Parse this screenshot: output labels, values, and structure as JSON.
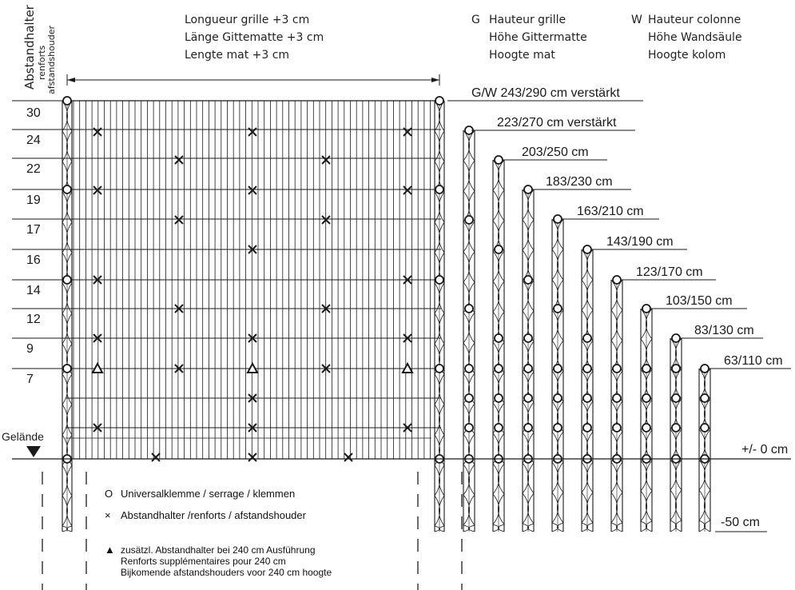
{
  "header": {
    "length_lines": [
      "Longueur grille +3 cm",
      "Länge Gittematte +3 cm",
      "Lengte mat +3 cm"
    ],
    "grid_height": {
      "key": "G",
      "lines": [
        "Hauteur grille",
        "Höhe Gittermatte",
        "Hoogte mat"
      ]
    },
    "column_height": {
      "key": "W",
      "lines": [
        "Hauteur colonne",
        "Höhe Wandsäule",
        "Hoogte kolom"
      ]
    }
  },
  "side_labels": {
    "abstandhalter": "Abstandhalter",
    "renforts": "renforts",
    "afstandshouder": "afstandshouder"
  },
  "spacings": [
    "30",
    "24",
    "22",
    "19",
    "17",
    "16",
    "14",
    "12",
    "9",
    "7"
  ],
  "terrain_label": "Gelände",
  "zero_label": "+/- 0 cm",
  "minus_label": "-50 cm",
  "heights": [
    {
      "label": "G/W 243/290 cm verstärkt"
    },
    {
      "label": "223/270 cm verstärkt"
    },
    {
      "label": "203/250 cm"
    },
    {
      "label": "183/230 cm"
    },
    {
      "label": "163/210 cm"
    },
    {
      "label": "143/190 cm"
    },
    {
      "label": "123/170 cm"
    },
    {
      "label": "103/150 cm"
    },
    {
      "label": "83/130 cm"
    },
    {
      "label": "63/110 cm"
    }
  ],
  "legend": {
    "clamp": {
      "symbol": "O",
      "text": "Universalklemme / serrage / klemmen"
    },
    "spacer": {
      "symbol": "×",
      "text": "Abstandhalter /renforts / afstandshouder"
    },
    "extra": {
      "symbol": "▲",
      "lines": [
        "zusätzl. Abstandhalter bei 240 cm Ausführung",
        "Renforts supplémentaires pour 240 cm",
        "Bijkomende afstandshouders voor 240 cm hoogte"
      ]
    }
  },
  "colors": {
    "ink": "#1a1a1a"
  }
}
